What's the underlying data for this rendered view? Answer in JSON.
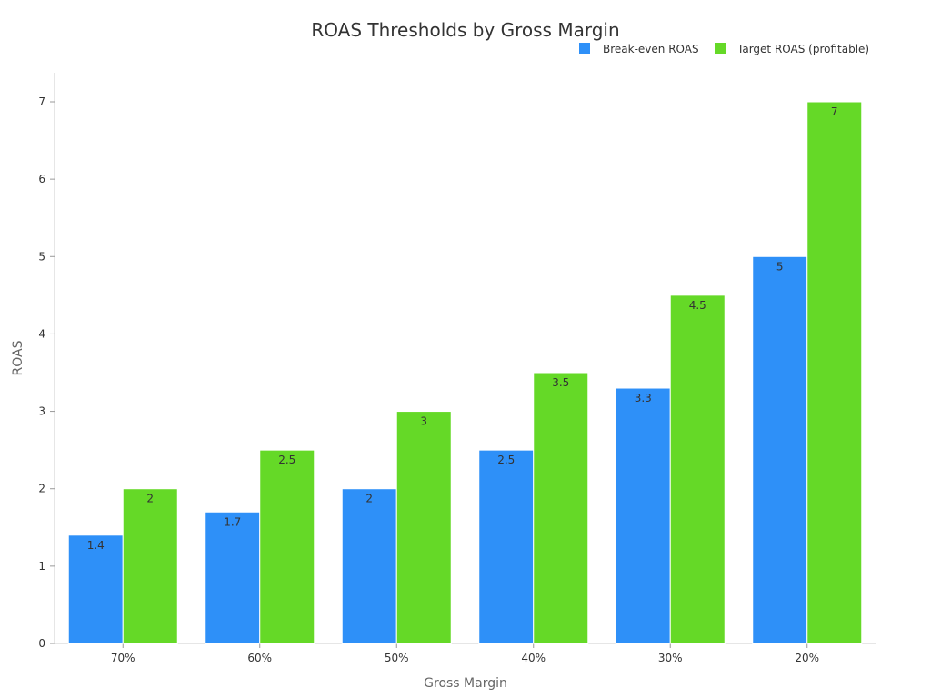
{
  "chart_data": {
    "type": "bar",
    "title": "ROAS Thresholds by Gross Margin",
    "xlabel": "Gross Margin",
    "ylabel": "ROAS",
    "categories": [
      "70%",
      "60%",
      "50%",
      "40%",
      "30%",
      "20%"
    ],
    "series": [
      {
        "name": "Break-even ROAS",
        "color": "#2e90f8",
        "values": [
          1.4,
          1.7,
          2,
          2.5,
          3.3,
          5
        ],
        "labels": [
          "1.4",
          "1.7",
          "2",
          "2.5",
          "3.3",
          "5"
        ]
      },
      {
        "name": "Target ROAS (profitable)",
        "color": "#65d927",
        "values": [
          2,
          2.5,
          3,
          3.5,
          4.5,
          7
        ],
        "labels": [
          "2",
          "2.5",
          "3",
          "3.5",
          "4.5",
          "7"
        ]
      }
    ],
    "ylim": [
      0,
      7
    ],
    "yticks": [
      0,
      1,
      2,
      3,
      4,
      5,
      6,
      7
    ],
    "grid": false,
    "legend_position": "top-right"
  }
}
